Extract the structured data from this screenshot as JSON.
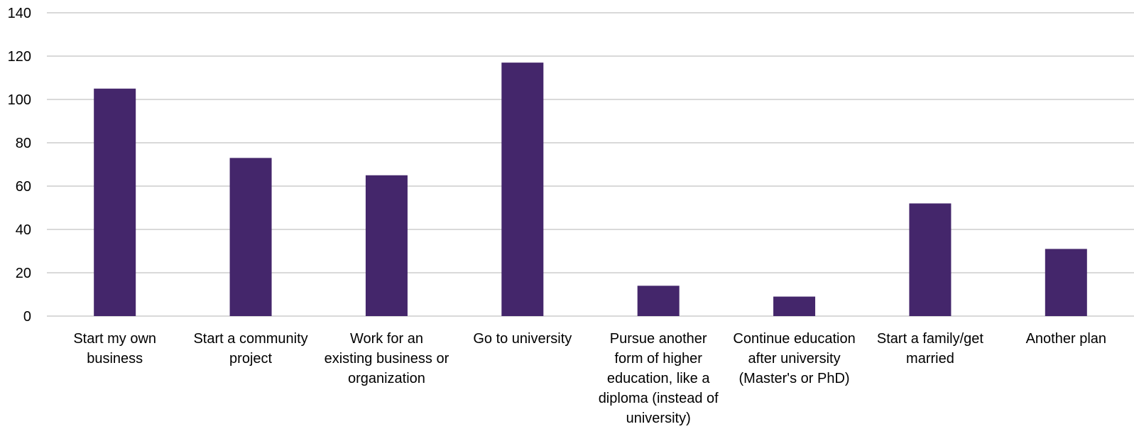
{
  "chart_data": {
    "type": "bar",
    "categories": [
      [
        "Start  my own",
        "business"
      ],
      [
        "Start  a community",
        "project"
      ],
      [
        "Work for an",
        "existing business or",
        "organization"
      ],
      [
        "Go to university"
      ],
      [
        "Pursue another",
        "form of higher",
        "education, like a",
        "diploma (instead of",
        "university)"
      ],
      [
        "Continue education",
        "after university",
        "(Master's or PhD)"
      ],
      [
        "Start  a family/get",
        "married"
      ],
      [
        "Another plan"
      ]
    ],
    "values": [
      105,
      73,
      65,
      117,
      14,
      9,
      52,
      31
    ],
    "ylim": [
      0,
      140
    ],
    "yticks": [
      0,
      20,
      40,
      60,
      80,
      100,
      120,
      140
    ],
    "grid": true,
    "bar_color": "#44266b",
    "grid_color": "#d9d9d9"
  }
}
